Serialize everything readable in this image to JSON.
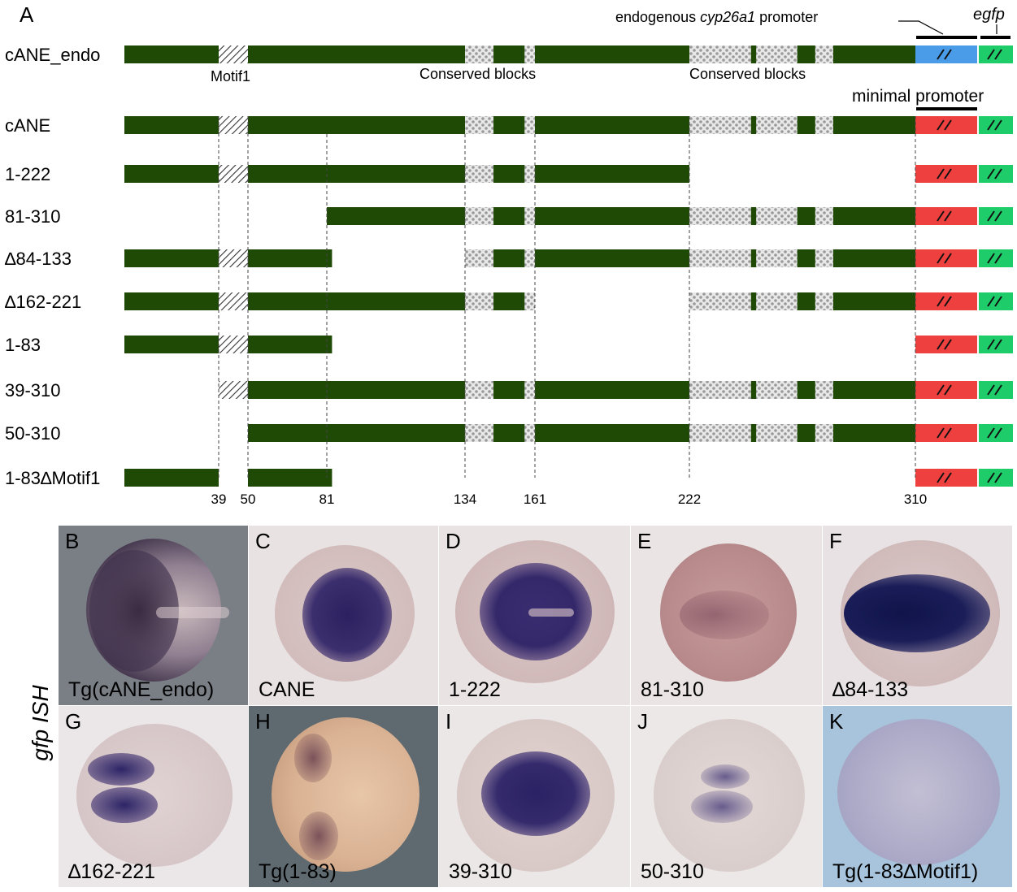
{
  "panel_a": {
    "letter": "A",
    "header": {
      "endogenous_prefix": "endogenous ",
      "endogenous_gene": "cyp26a1",
      "endogenous_suffix": " promoter",
      "egfp": "egfp",
      "minimal_promoter": "minimal promoter",
      "motif_label": "Motif1",
      "conserved_label_1": "Conserved blocks",
      "conserved_label_2": "Conserved blocks"
    },
    "constructs": [
      {
        "label": "cANE_endo",
        "segments": [
          [
            1,
            310
          ]
        ],
        "promoter": "endogenous"
      },
      {
        "label": "cANE",
        "segments": [
          [
            1,
            310
          ]
        ],
        "promoter": "minimal"
      },
      {
        "label": "1-222",
        "segments": [
          [
            1,
            222
          ]
        ],
        "promoter": "minimal"
      },
      {
        "label": "81-310",
        "segments": [
          [
            81,
            310
          ]
        ],
        "promoter": "minimal"
      },
      {
        "label": "∆84-133",
        "segments": [
          [
            1,
            83
          ],
          [
            134,
            310
          ]
        ],
        "promoter": "minimal"
      },
      {
        "label": "∆162-221",
        "segments": [
          [
            1,
            161
          ],
          [
            222,
            310
          ]
        ],
        "promoter": "minimal"
      },
      {
        "label": "1-83",
        "segments": [
          [
            1,
            83
          ]
        ],
        "promoter": "minimal"
      },
      {
        "label": "39-310",
        "segments": [
          [
            39,
            310
          ]
        ],
        "promoter": "minimal"
      },
      {
        "label": "50-310",
        "segments": [
          [
            50,
            310
          ]
        ],
        "promoter": "minimal"
      },
      {
        "label": "1-83∆Motif1",
        "segments": [
          [
            1,
            39
          ],
          [
            50,
            83
          ]
        ],
        "promoter": "minimal"
      }
    ],
    "ticks": [
      "39",
      "50",
      "81",
      "134",
      "161",
      "222",
      "310"
    ],
    "colors": {
      "enhancer": "#1f4a06",
      "endogenous_promoter": "#4a9be8",
      "minimal_promoter": "#ef4040",
      "egfp": "#1fcc6a",
      "conserved": "#c8c8c8"
    }
  },
  "side_label": "gfp ISH",
  "panels": [
    {
      "letter": "B",
      "caption": "Tg(cANE_endo)"
    },
    {
      "letter": "C",
      "caption": "CANE"
    },
    {
      "letter": "D",
      "caption": "1-222"
    },
    {
      "letter": "E",
      "caption": "81-310"
    },
    {
      "letter": "F",
      "caption": "∆84-133"
    },
    {
      "letter": "G",
      "caption": "∆162-221"
    },
    {
      "letter": "H",
      "caption": "Tg(1-83)"
    },
    {
      "letter": "I",
      "caption": "39-310"
    },
    {
      "letter": "J",
      "caption": "50-310"
    },
    {
      "letter": "K",
      "caption": "Tg(1-83∆Motif1)"
    }
  ]
}
